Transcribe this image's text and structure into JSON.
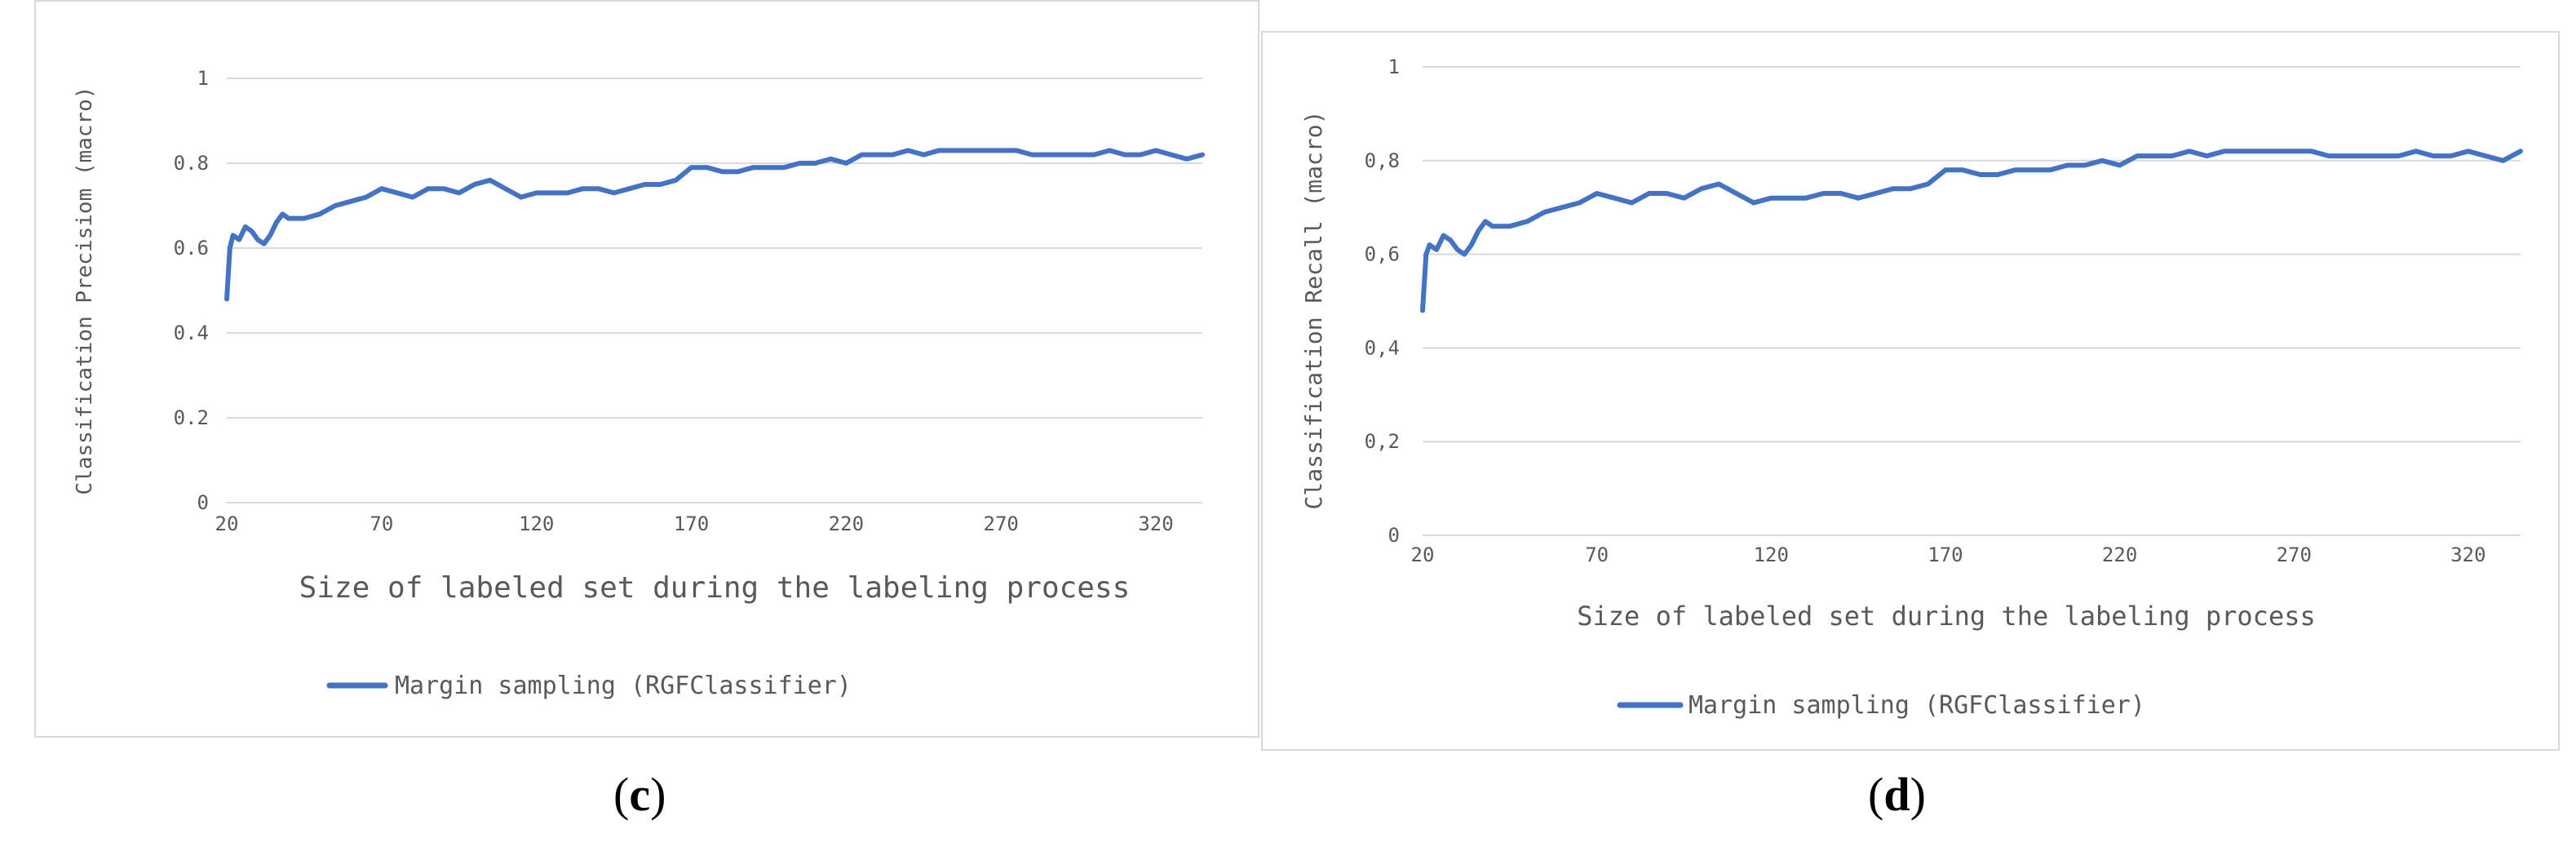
{
  "chart_data": [
    {
      "panel": "c",
      "type": "line",
      "ylabel": "Classification Precisiom (macro)",
      "xlabel": "Size of labeled set during the labeling process",
      "x_ticks": [
        "20",
        "70",
        "120",
        "170",
        "220",
        "270",
        "320"
      ],
      "y_ticks": [
        "0",
        "0.2",
        "0.4",
        "0.6",
        "0.8",
        "1"
      ],
      "xlim": [
        20,
        335
      ],
      "ylim": [
        0,
        1
      ],
      "grid": true,
      "legend_position": "bottom",
      "color": "#4472c4",
      "series": [
        {
          "name": "Margin sampling (RGFClassifier)",
          "x": [
            20,
            21,
            22,
            24,
            26,
            28,
            30,
            32,
            34,
            36,
            38,
            40,
            45,
            50,
            55,
            60,
            65,
            70,
            75,
            80,
            85,
            90,
            95,
            100,
            105,
            110,
            115,
            120,
            125,
            130,
            135,
            140,
            145,
            150,
            155,
            160,
            165,
            170,
            175,
            180,
            185,
            190,
            195,
            200,
            205,
            210,
            215,
            220,
            225,
            230,
            235,
            240,
            245,
            250,
            255,
            260,
            265,
            270,
            275,
            280,
            285,
            290,
            295,
            300,
            305,
            310,
            315,
            320,
            325,
            330,
            335
          ],
          "y": [
            0.48,
            0.6,
            0.63,
            0.62,
            0.65,
            0.64,
            0.62,
            0.61,
            0.63,
            0.66,
            0.68,
            0.67,
            0.67,
            0.68,
            0.7,
            0.71,
            0.72,
            0.74,
            0.73,
            0.72,
            0.74,
            0.74,
            0.73,
            0.75,
            0.76,
            0.74,
            0.72,
            0.73,
            0.73,
            0.73,
            0.74,
            0.74,
            0.73,
            0.74,
            0.75,
            0.75,
            0.76,
            0.79,
            0.79,
            0.78,
            0.78,
            0.79,
            0.79,
            0.79,
            0.8,
            0.8,
            0.81,
            0.8,
            0.82,
            0.82,
            0.82,
            0.83,
            0.82,
            0.83,
            0.83,
            0.83,
            0.83,
            0.83,
            0.83,
            0.82,
            0.82,
            0.82,
            0.82,
            0.82,
            0.83,
            0.82,
            0.82,
            0.83,
            0.82,
            0.81,
            0.82
          ]
        }
      ]
    },
    {
      "panel": "d",
      "type": "line",
      "ylabel": "Classification Recall (macro)",
      "xlabel": "Size of labeled set during the labeling process",
      "x_ticks": [
        "20",
        "70",
        "120",
        "170",
        "220",
        "270",
        "320"
      ],
      "y_ticks": [
        "0",
        "0,2",
        "0,4",
        "0,6",
        "0,8",
        "1"
      ],
      "xlim": [
        20,
        335
      ],
      "ylim": [
        0,
        1
      ],
      "grid": true,
      "legend_position": "bottom",
      "color": "#4472c4",
      "series": [
        {
          "name": "Margin sampling (RGFClassifier)",
          "x": [
            20,
            21,
            22,
            24,
            26,
            28,
            30,
            32,
            34,
            36,
            38,
            40,
            45,
            50,
            55,
            60,
            65,
            70,
            75,
            80,
            85,
            90,
            95,
            100,
            105,
            110,
            115,
            120,
            125,
            130,
            135,
            140,
            145,
            150,
            155,
            160,
            165,
            170,
            175,
            180,
            185,
            190,
            195,
            200,
            205,
            210,
            215,
            220,
            225,
            230,
            235,
            240,
            245,
            250,
            255,
            260,
            265,
            270,
            275,
            280,
            285,
            290,
            295,
            300,
            305,
            310,
            315,
            320,
            325,
            330,
            335
          ],
          "y": [
            0.48,
            0.6,
            0.62,
            0.61,
            0.64,
            0.63,
            0.61,
            0.6,
            0.62,
            0.65,
            0.67,
            0.66,
            0.66,
            0.67,
            0.69,
            0.7,
            0.71,
            0.73,
            0.72,
            0.71,
            0.73,
            0.73,
            0.72,
            0.74,
            0.75,
            0.73,
            0.71,
            0.72,
            0.72,
            0.72,
            0.73,
            0.73,
            0.72,
            0.73,
            0.74,
            0.74,
            0.75,
            0.78,
            0.78,
            0.77,
            0.77,
            0.78,
            0.78,
            0.78,
            0.79,
            0.79,
            0.8,
            0.79,
            0.81,
            0.81,
            0.81,
            0.82,
            0.81,
            0.82,
            0.82,
            0.82,
            0.82,
            0.82,
            0.82,
            0.81,
            0.81,
            0.81,
            0.81,
            0.81,
            0.82,
            0.81,
            0.81,
            0.82,
            0.81,
            0.8,
            0.82
          ]
        }
      ]
    }
  ],
  "captions": {
    "c": {
      "open": "(",
      "letter": "c",
      "close": ")"
    },
    "d": {
      "open": "(",
      "letter": "d",
      "close": ")"
    }
  }
}
